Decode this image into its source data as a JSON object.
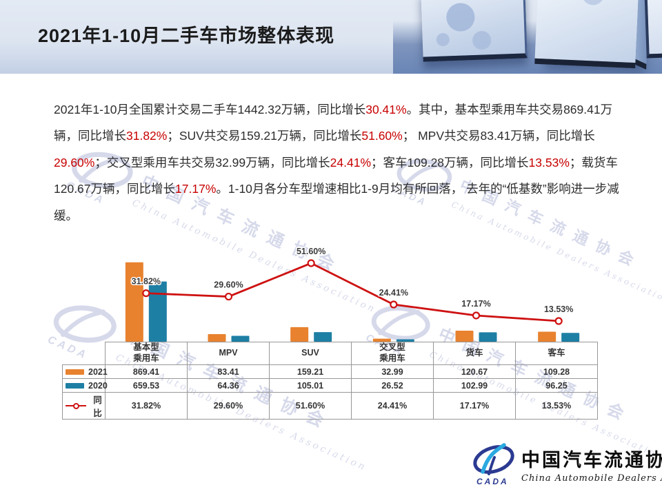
{
  "header": {
    "title": "2021年1-10月二手车市场整体表现"
  },
  "paragraph": {
    "lines": [
      [
        {
          "t": "2021年1-10月全国累计交易二手车1442.32万辆，同比增长"
        },
        {
          "t": "30.41%",
          "red": true
        },
        {
          "t": "。其中，基本型乘用车共交易869.41万"
        }
      ],
      [
        {
          "t": "辆，同比增长"
        },
        {
          "t": "31.82%",
          "red": true
        },
        {
          "t": "；SUV共交易159.21万辆，同比增长"
        },
        {
          "t": "51.60%",
          "red": true
        },
        {
          "t": "； MPV共交易83.41万辆，同比增长"
        }
      ],
      [
        {
          "t": "29.60%",
          "red": true
        },
        {
          "t": "；交叉型乘用车共交易32.99万辆，同比增长"
        },
        {
          "t": "24.41%",
          "red": true
        },
        {
          "t": "；客车109.28万辆，同比增长"
        },
        {
          "t": "13.53%",
          "red": true
        },
        {
          "t": "；载货车"
        }
      ],
      [
        {
          "t": "120.67万辆，同比增长"
        },
        {
          "t": "17.17%",
          "red": true
        },
        {
          "t": "。1-10月各分车型增速相比1-9月均有所回落， 去年的“低基数”影响进一步减"
        }
      ],
      [
        {
          "t": "缓。"
        }
      ]
    ]
  },
  "chart_data": {
    "type": "bar",
    "subtype": "bar+line-combo",
    "categories": [
      "基本型乘用车",
      "MPV",
      "SUV",
      "交叉型乘用车",
      "货车",
      "客车"
    ],
    "series": [
      {
        "name": "2021",
        "type": "bar",
        "color": "#E8822F",
        "values": [
          869.41,
          83.41,
          159.21,
          32.99,
          120.67,
          109.28
        ]
      },
      {
        "name": "2020",
        "type": "bar",
        "color": "#1E7FA4",
        "values": [
          659.53,
          64.36,
          105.01,
          26.52,
          102.99,
          96.25
        ]
      },
      {
        "name": "同比",
        "type": "line",
        "color": "#CE1111",
        "values": [
          31.82,
          29.6,
          51.6,
          24.41,
          17.17,
          13.53
        ],
        "labels": [
          "31.82%",
          "29.60%",
          "51.60%",
          "24.41%",
          "17.17%",
          "13.53%"
        ]
      }
    ],
    "title": "",
    "xlabel": "",
    "ylabel": "",
    "value_axis_visible": false,
    "grid": false,
    "legend_position": "table-left",
    "bar_unit": "万辆",
    "line_unit": "%"
  },
  "table": {
    "columns": [
      "基本型\n乘用车",
      "MPV",
      "SUV",
      "交叉型\n乘用车",
      "货车",
      "客车"
    ],
    "rows": [
      {
        "label": "2021",
        "marker": "bar-orange",
        "cells": [
          "869.41",
          "83.41",
          "159.21",
          "32.99",
          "120.67",
          "109.28"
        ]
      },
      {
        "label": "2020",
        "marker": "bar-teal",
        "cells": [
          "659.53",
          "64.36",
          "105.01",
          "26.52",
          "102.99",
          "96.25"
        ]
      },
      {
        "label": "同比",
        "marker": "line-red",
        "cells": [
          "31.82%",
          "29.60%",
          "51.60%",
          "24.41%",
          "17.17%",
          "13.53%"
        ]
      }
    ]
  },
  "watermark": {
    "abbr": "CADA",
    "cn": "中国汽车流通协会",
    "en": "China Automobile Dealers Association"
  },
  "footer_logo": {
    "abbr": "CADA",
    "cn": "中国汽车流通协会",
    "en": "China Automobile Dealers Association"
  },
  "colors": {
    "orange_2021": "#E8822F",
    "teal_2020": "#1E7FA4",
    "line_red": "#CE1111",
    "text_red": "#C80000"
  }
}
